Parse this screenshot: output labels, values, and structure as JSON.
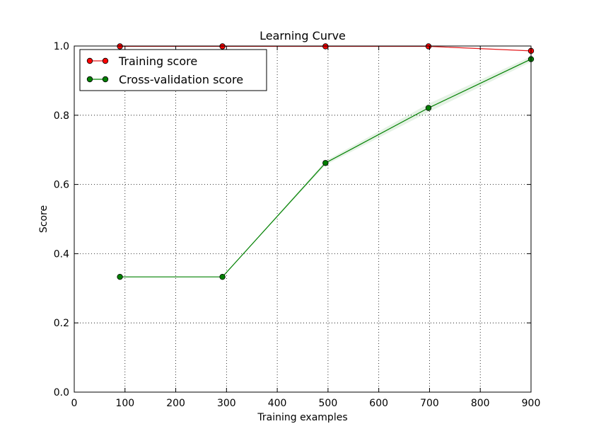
{
  "chart_data": {
    "type": "line",
    "title": "Learning Curve",
    "xlabel": "Training examples",
    "ylabel": "Score",
    "xlim": [
      0,
      900
    ],
    "ylim": [
      0.0,
      1.0
    ],
    "x_ticks": [
      "0",
      "100",
      "200",
      "300",
      "400",
      "500",
      "600",
      "700",
      "800",
      "900"
    ],
    "y_ticks": [
      "0.0",
      "0.2",
      "0.4",
      "0.6",
      "0.8",
      "1.0"
    ],
    "grid": true,
    "legend_position": "top-left",
    "series": [
      {
        "name": "Training score",
        "color": "#e41a1c",
        "marker_color": "#ff0000",
        "x": [
          90,
          292,
          495,
          698,
          900
        ],
        "y": [
          0.999,
          0.999,
          0.999,
          0.999,
          0.986
        ],
        "band": [
          0,
          0,
          0,
          0,
          0
        ]
      },
      {
        "name": "Cross-validation score",
        "color": "#008000",
        "marker_color": "#007f00",
        "x": [
          90,
          292,
          495,
          698,
          900
        ],
        "y": [
          0.333,
          0.333,
          0.662,
          0.821,
          0.962
        ],
        "band": [
          0,
          0,
          0.006,
          0.012,
          0.008
        ]
      }
    ]
  }
}
